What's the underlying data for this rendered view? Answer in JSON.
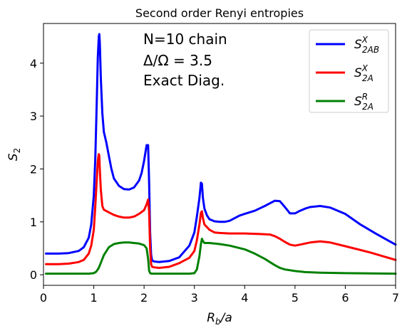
{
  "chart_data": {
    "type": "line",
    "title": "Second order Renyi entropies",
    "xlabel": {
      "base": "R",
      "sub": "b",
      "rest": "/a"
    },
    "ylabel": {
      "base": "S",
      "sub": "2"
    },
    "xlim": [
      0,
      7
    ],
    "ylim": [
      -0.2,
      4.75
    ],
    "xticks": [
      "0",
      "1",
      "2",
      "3",
      "4",
      "5",
      "6",
      "7"
    ],
    "yticks": [
      "0",
      "1",
      "2",
      "3",
      "4"
    ],
    "grid": false,
    "legend_position": "top-right",
    "annotations": [
      "N=10 chain",
      "Δ/Ω = 3.5",
      "Exact Diag."
    ],
    "series": [
      {
        "name": "S_2AB^X",
        "label_base": "S",
        "label_sup": "X",
        "label_sub": "2AB",
        "color": "#0000ff",
        "x": [
          0.05,
          0.3,
          0.5,
          0.7,
          0.8,
          0.9,
          0.95,
          1.0,
          1.03,
          1.06,
          1.08,
          1.1,
          1.11,
          1.12,
          1.14,
          1.17,
          1.2,
          1.25,
          1.3,
          1.35,
          1.4,
          1.5,
          1.6,
          1.7,
          1.8,
          1.9,
          1.95,
          2.0,
          2.05,
          2.08,
          2.1,
          2.12,
          2.14,
          2.16,
          2.2,
          2.3,
          2.5,
          2.7,
          2.9,
          3.0,
          3.05,
          3.1,
          3.13,
          3.15,
          3.17,
          3.2,
          3.25,
          3.3,
          3.4,
          3.5,
          3.6,
          3.7,
          3.8,
          3.9,
          4.0,
          4.2,
          4.4,
          4.6,
          4.7,
          4.8,
          4.9,
          5.0,
          5.1,
          5.2,
          5.3,
          5.5,
          5.7,
          6.0,
          6.3,
          6.6,
          7.0
        ],
        "y": [
          0.4,
          0.4,
          0.41,
          0.45,
          0.52,
          0.7,
          0.95,
          1.5,
          2.2,
          3.3,
          4.1,
          4.5,
          4.55,
          4.4,
          3.7,
          3.05,
          2.7,
          2.5,
          2.25,
          2.0,
          1.82,
          1.68,
          1.62,
          1.61,
          1.65,
          1.78,
          1.92,
          2.15,
          2.45,
          2.45,
          1.75,
          0.8,
          0.38,
          0.27,
          0.25,
          0.24,
          0.26,
          0.33,
          0.55,
          0.8,
          1.1,
          1.45,
          1.74,
          1.72,
          1.45,
          1.25,
          1.12,
          1.05,
          1.01,
          1.0,
          1.0,
          1.02,
          1.07,
          1.12,
          1.15,
          1.21,
          1.3,
          1.4,
          1.39,
          1.28,
          1.16,
          1.16,
          1.21,
          1.25,
          1.28,
          1.3,
          1.27,
          1.15,
          0.95,
          0.78,
          0.57
        ]
      },
      {
        "name": "S_2A^X",
        "label_base": "S",
        "label_sup": "X",
        "label_sub": "2A",
        "color": "#ff0000",
        "x": [
          0.05,
          0.3,
          0.5,
          0.7,
          0.8,
          0.9,
          0.95,
          1.0,
          1.03,
          1.06,
          1.08,
          1.1,
          1.11,
          1.12,
          1.14,
          1.17,
          1.2,
          1.3,
          1.4,
          1.5,
          1.6,
          1.7,
          1.8,
          1.9,
          2.0,
          2.05,
          2.08,
          2.1,
          2.12,
          2.14,
          2.16,
          2.2,
          2.3,
          2.5,
          2.7,
          2.9,
          3.0,
          3.05,
          3.1,
          3.13,
          3.15,
          3.17,
          3.2,
          3.3,
          3.4,
          3.5,
          3.7,
          4.0,
          4.3,
          4.5,
          4.6,
          4.7,
          4.8,
          4.9,
          5.0,
          5.1,
          5.3,
          5.5,
          5.7,
          6.0,
          6.5,
          7.0
        ],
        "y": [
          0.2,
          0.2,
          0.21,
          0.24,
          0.28,
          0.4,
          0.55,
          0.85,
          1.3,
          1.8,
          2.15,
          2.28,
          2.25,
          2.0,
          1.6,
          1.3,
          1.23,
          1.18,
          1.13,
          1.1,
          1.08,
          1.08,
          1.1,
          1.15,
          1.22,
          1.33,
          1.42,
          1.2,
          0.5,
          0.2,
          0.15,
          0.14,
          0.13,
          0.15,
          0.22,
          0.32,
          0.45,
          0.65,
          0.95,
          1.17,
          1.2,
          1.07,
          0.95,
          0.85,
          0.8,
          0.79,
          0.78,
          0.78,
          0.77,
          0.76,
          0.73,
          0.68,
          0.62,
          0.57,
          0.55,
          0.57,
          0.61,
          0.63,
          0.61,
          0.54,
          0.42,
          0.28
        ]
      },
      {
        "name": "S_2A^R",
        "label_base": "S",
        "label_sup": "R",
        "label_sub": "2A",
        "color": "#008000",
        "x": [
          0.05,
          0.5,
          0.9,
          1.0,
          1.05,
          1.1,
          1.15,
          1.2,
          1.3,
          1.4,
          1.5,
          1.6,
          1.7,
          1.8,
          1.9,
          2.0,
          2.05,
          2.08,
          2.1,
          2.12,
          2.15,
          2.3,
          2.6,
          2.9,
          3.0,
          3.05,
          3.1,
          3.13,
          3.15,
          3.17,
          3.2,
          3.3,
          3.5,
          3.7,
          4.0,
          4.2,
          4.4,
          4.5,
          4.6,
          4.7,
          4.8,
          5.0,
          5.2,
          5.5,
          6.0,
          7.0
        ],
        "y": [
          0.02,
          0.02,
          0.02,
          0.03,
          0.06,
          0.13,
          0.25,
          0.37,
          0.52,
          0.58,
          0.6,
          0.61,
          0.61,
          0.6,
          0.59,
          0.56,
          0.5,
          0.3,
          0.08,
          0.03,
          0.02,
          0.02,
          0.02,
          0.02,
          0.03,
          0.1,
          0.35,
          0.58,
          0.68,
          0.64,
          0.6,
          0.6,
          0.58,
          0.55,
          0.48,
          0.4,
          0.3,
          0.24,
          0.18,
          0.13,
          0.1,
          0.07,
          0.05,
          0.04,
          0.03,
          0.02
        ]
      }
    ]
  }
}
